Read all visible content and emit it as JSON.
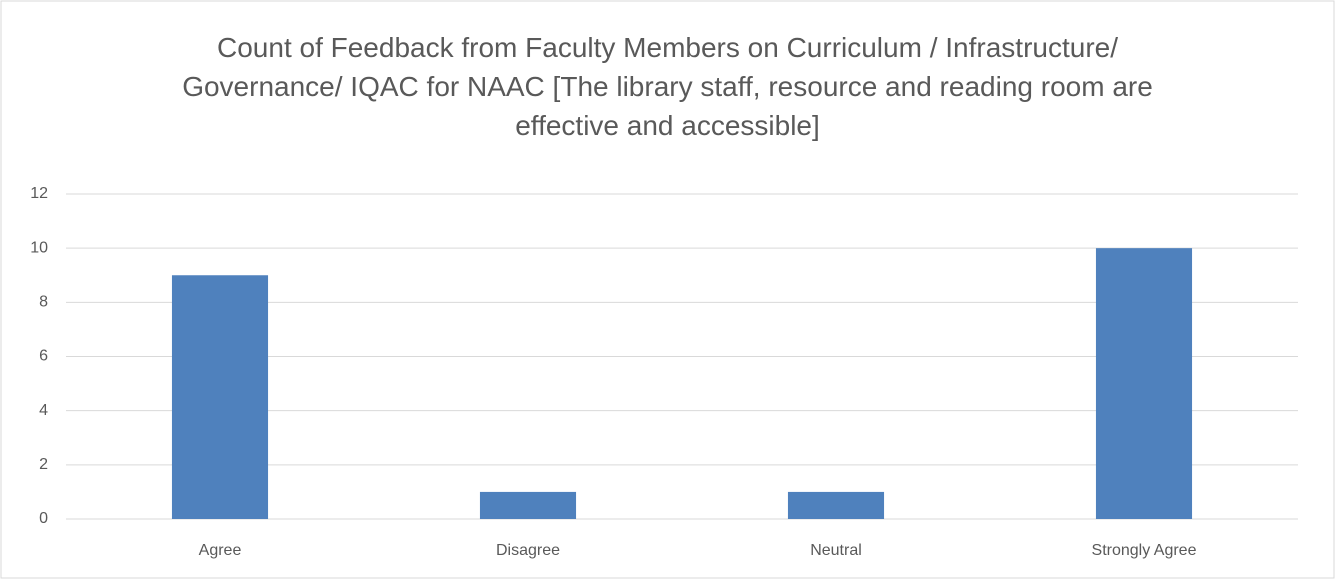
{
  "chart_data": {
    "type": "bar",
    "title": "Count of Feedback from Faculty Members on Curriculum / Infrastructure/ Governance/ IQAC for NAAC [The library staff, resource and reading room are effective and accessible]",
    "categories": [
      "Agree",
      "Disagree",
      "Neutral",
      "Strongly Agree"
    ],
    "values": [
      9,
      1,
      1,
      10
    ],
    "color": "#4f81bd",
    "ylim": [
      0,
      12
    ],
    "yticks": [
      0,
      2,
      4,
      6,
      8,
      10,
      12
    ],
    "grid": true
  }
}
